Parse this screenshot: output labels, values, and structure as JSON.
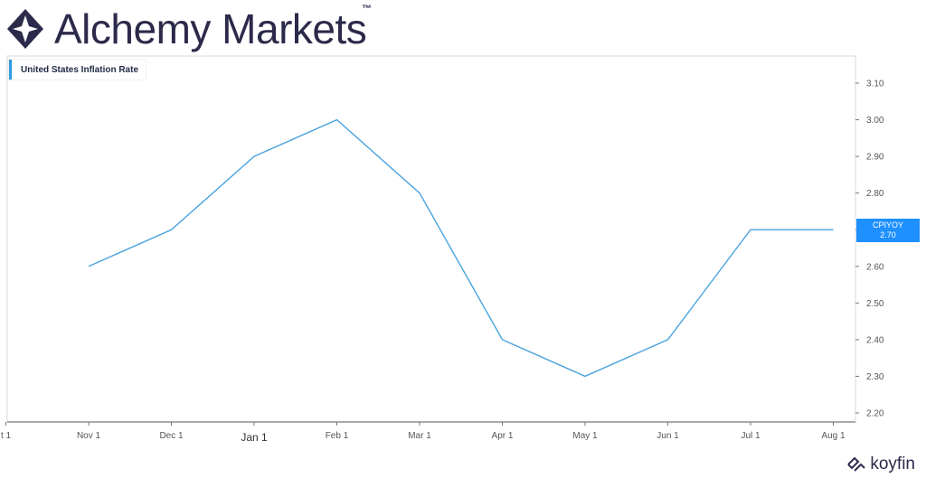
{
  "brand": {
    "name": "Alchemy Markets",
    "tm": "™"
  },
  "footer": {
    "brand": "koyfin"
  },
  "colors": {
    "line": "#4aa3df",
    "badge": "#1e90ff",
    "brand": "#2c2a4a"
  },
  "chart_data": {
    "type": "line",
    "title": "",
    "legend": {
      "label": "United States Inflation Rate",
      "placement": "top-left"
    },
    "x": [
      "Nov 1",
      "Dec 1",
      "Jan 1",
      "Feb 1",
      "Mar 1",
      "Apr 1",
      "May 1",
      "Jun 1",
      "Jul 1",
      "Aug 1"
    ],
    "x_tick_labels": [
      "t 1",
      "Nov 1",
      "Dec 1",
      "Jan 1",
      "Feb 1",
      "Mar 1",
      "Apr 1",
      "May 1",
      "Jun 1",
      "Jul 1",
      "Aug 1"
    ],
    "series": [
      {
        "name": "United States Inflation Rate",
        "values": [
          2.6,
          2.7,
          2.9,
          3.0,
          2.8,
          2.4,
          2.3,
          2.4,
          2.7,
          2.7
        ]
      }
    ],
    "y_ticks": [
      "2.20",
      "2.30",
      "2.40",
      "2.50",
      "2.60",
      "2.70",
      "2.80",
      "2.90",
      "3.00",
      "3.10"
    ],
    "ylim": [
      2.2,
      3.1
    ],
    "y_axis_side": "right",
    "grid": false,
    "last_value_badge": {
      "ticker": "CPIYOY",
      "value": "2.70"
    }
  }
}
